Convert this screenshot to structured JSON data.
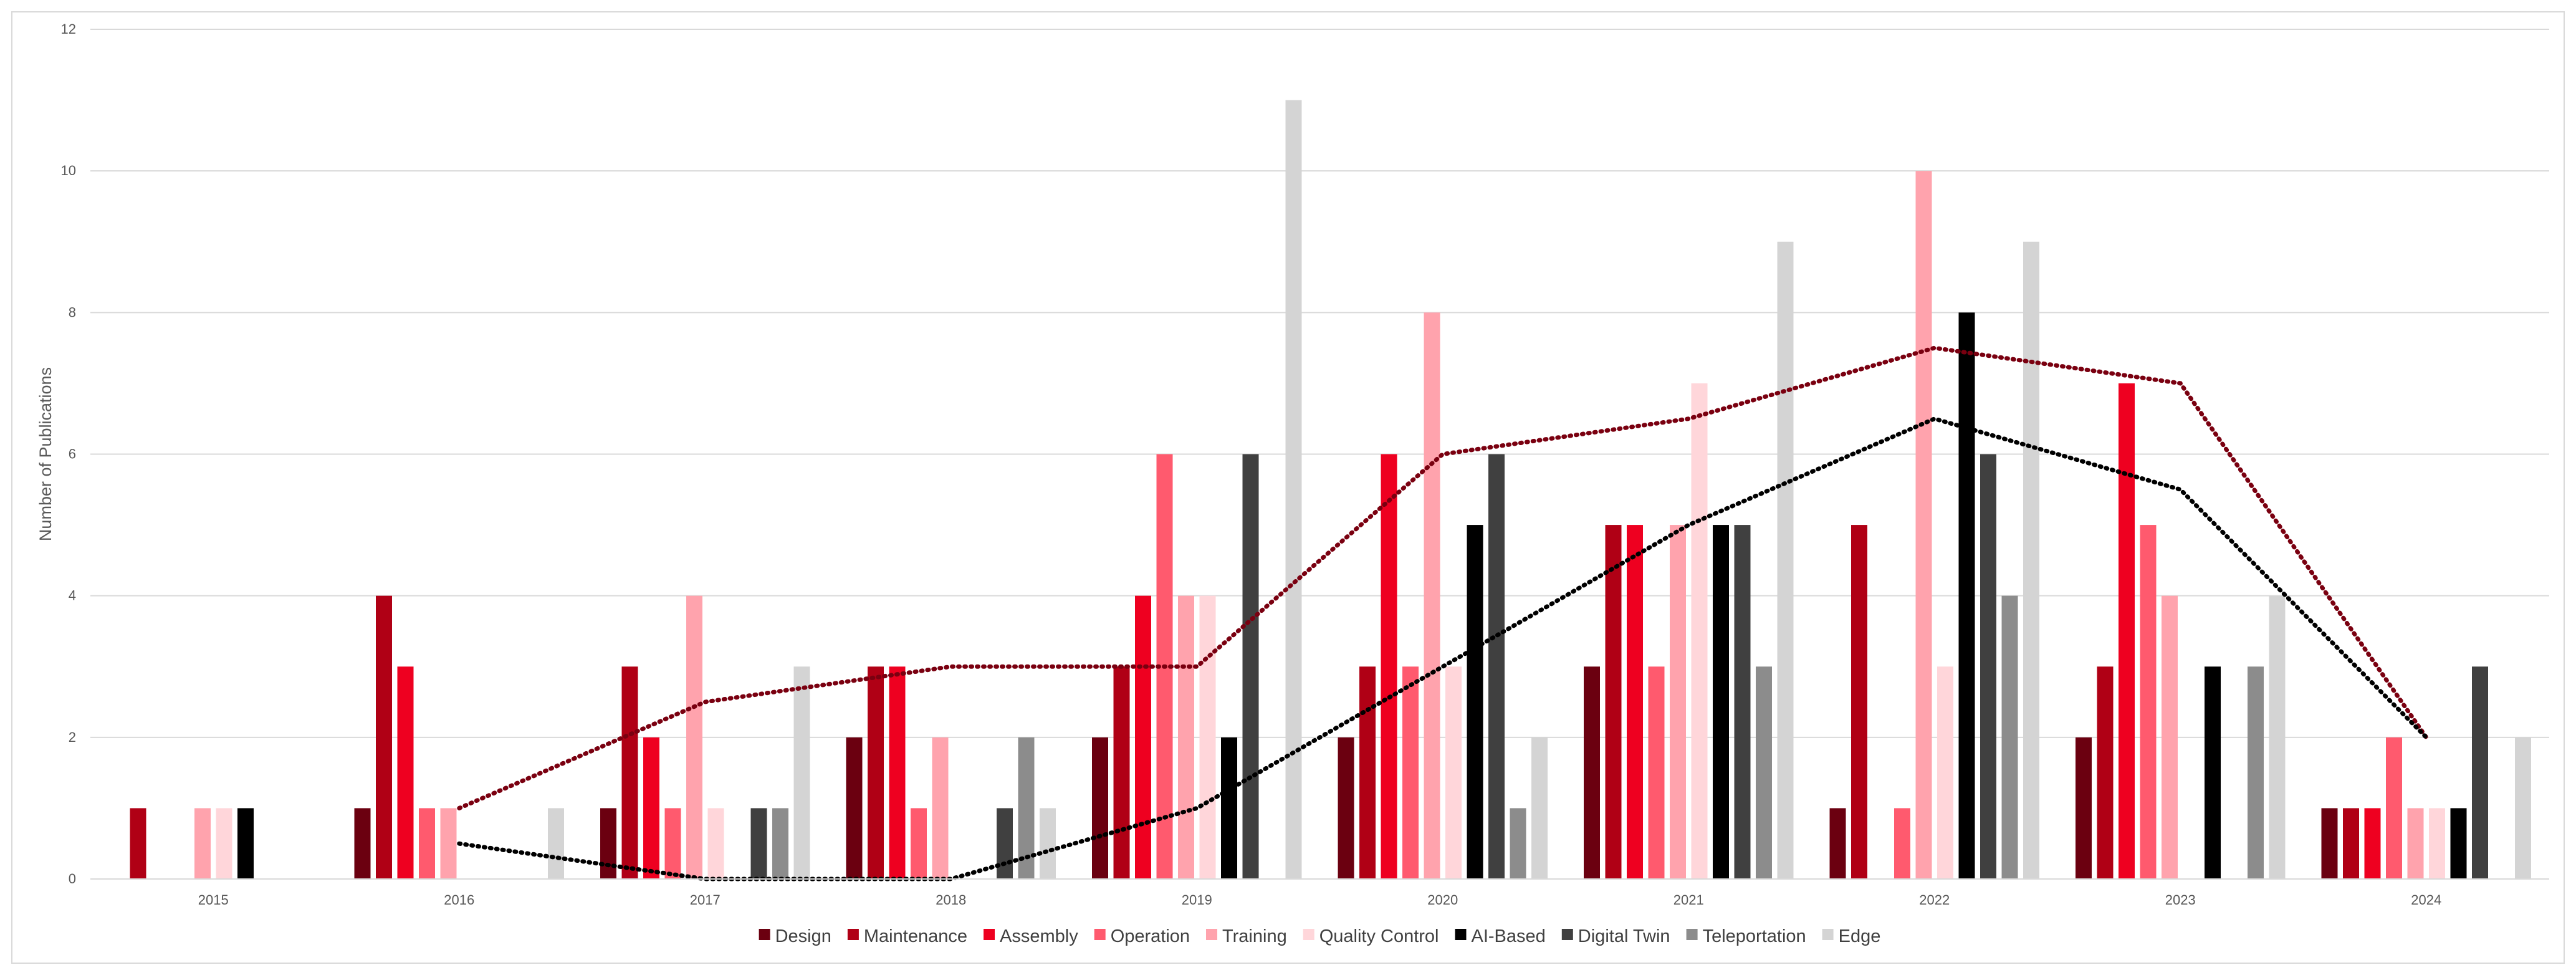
{
  "chart_data": {
    "type": "bar",
    "title": "",
    "xlabel": "",
    "ylabel": "Number of Publications",
    "ylim": [
      0,
      12
    ],
    "yticks": [
      0,
      2,
      4,
      6,
      8,
      10,
      12
    ],
    "grid": true,
    "legend_position": "bottom",
    "categories": [
      "2015",
      "2016",
      "2017",
      "2018",
      "2019",
      "2020",
      "2021",
      "2022",
      "2023",
      "2024"
    ],
    "series": [
      {
        "name": "Design",
        "color": "#6b0010",
        "values": [
          0,
          1,
          1,
          2,
          2,
          2,
          3,
          1,
          2,
          1
        ]
      },
      {
        "name": "Maintenance",
        "color": "#b00015",
        "values": [
          1,
          4,
          3,
          3,
          3,
          3,
          5,
          5,
          3,
          1
        ]
      },
      {
        "name": "Assembly",
        "color": "#ee0020",
        "values": [
          0,
          3,
          2,
          3,
          4,
          6,
          5,
          0,
          7,
          1
        ]
      },
      {
        "name": "Operation",
        "color": "#ff5a6e",
        "values": [
          0,
          1,
          1,
          1,
          6,
          3,
          3,
          1,
          5,
          2
        ]
      },
      {
        "name": "Training",
        "color": "#ffa3ad",
        "values": [
          1,
          1,
          4,
          2,
          4,
          8,
          5,
          10,
          4,
          1
        ]
      },
      {
        "name": "Quality Control",
        "color": "#ffd6da",
        "values": [
          1,
          0,
          1,
          0,
          4,
          3,
          7,
          3,
          0,
          1
        ]
      },
      {
        "name": "AI-Based",
        "color": "#000000",
        "values": [
          1,
          0,
          0,
          0,
          2,
          5,
          5,
          8,
          3,
          1
        ]
      },
      {
        "name": "Digital Twin",
        "color": "#404040",
        "values": [
          0,
          0,
          1,
          1,
          6,
          6,
          5,
          6,
          0,
          3
        ]
      },
      {
        "name": "Teleportation",
        "color": "#8c8c8c",
        "values": [
          0,
          0,
          1,
          2,
          0,
          1,
          3,
          4,
          3,
          0
        ]
      },
      {
        "name": "Edge",
        "color": "#d4d4d4",
        "values": [
          0,
          1,
          3,
          1,
          11,
          2,
          9,
          9,
          4,
          2
        ]
      }
    ],
    "trendlines": [
      {
        "color": "#7a0010",
        "style": "dotted",
        "x": [
          "2016",
          "2017",
          "2018",
          "2019",
          "2020",
          "2021",
          "2022",
          "2023",
          "2024"
        ],
        "values": [
          1,
          2.5,
          3,
          3,
          6,
          6.5,
          7.5,
          7,
          2
        ]
      },
      {
        "color": "#000000",
        "style": "dotted",
        "x": [
          "2016",
          "2017",
          "2018",
          "2019",
          "2020",
          "2021",
          "2022",
          "2023",
          "2024"
        ],
        "values": [
          0.5,
          0,
          0,
          1,
          3,
          5,
          6.5,
          5.5,
          2
        ]
      }
    ]
  }
}
